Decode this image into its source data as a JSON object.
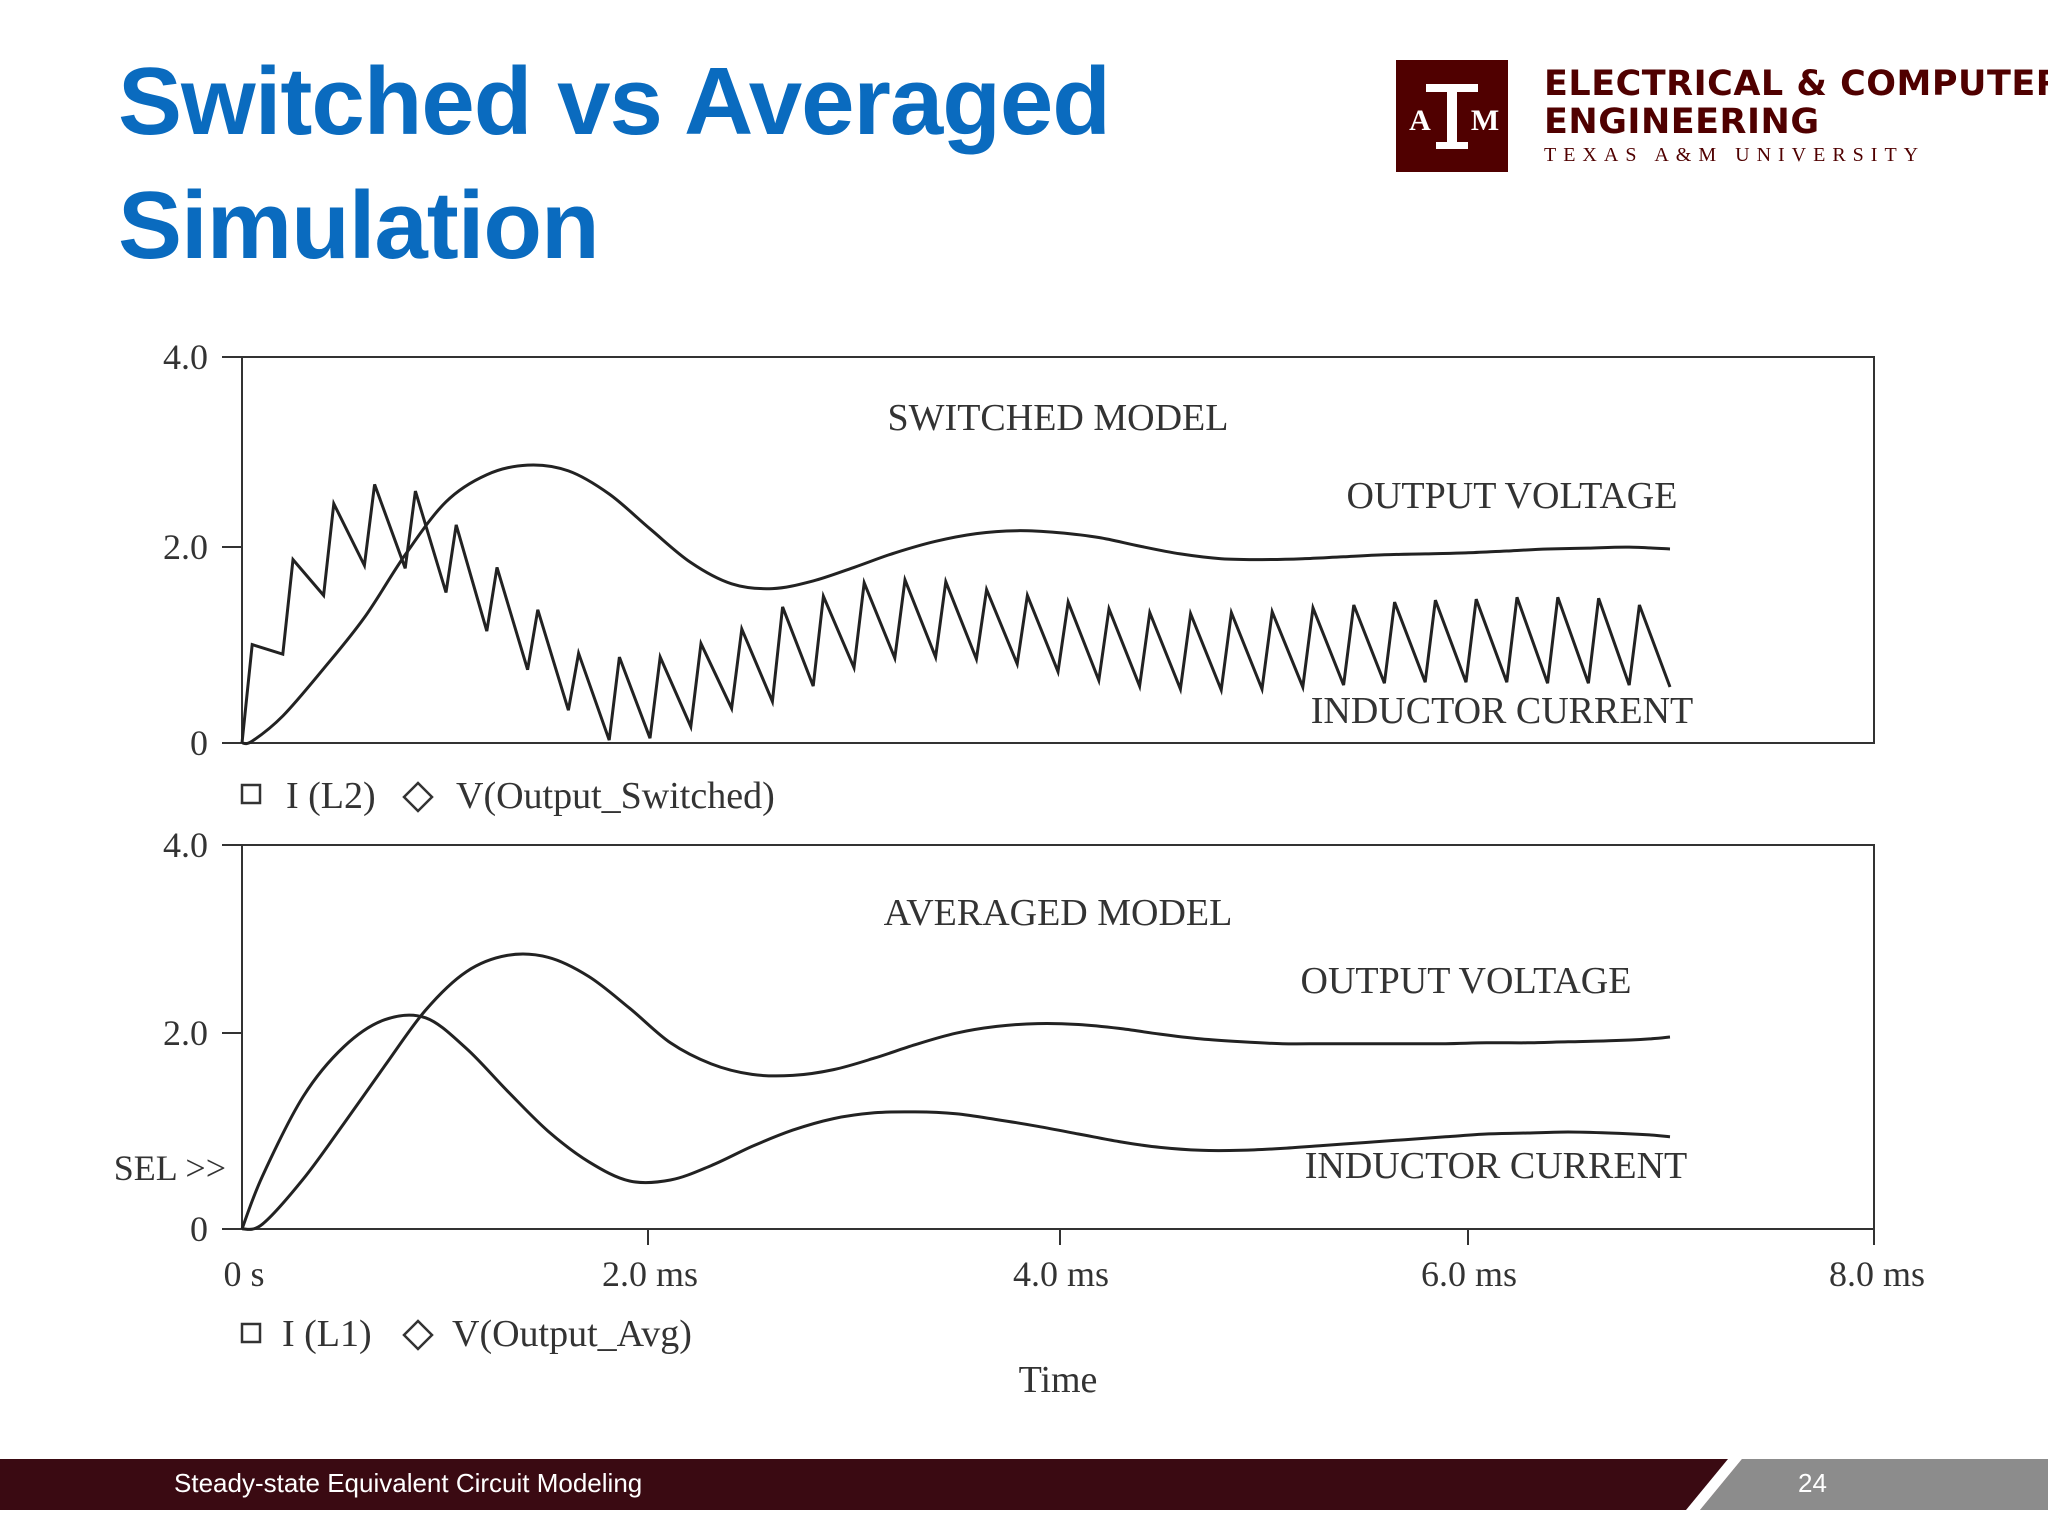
{
  "slide": {
    "title_line1": "Switched vs Averaged",
    "title_line2": "Simulation",
    "footer_text": "Steady-state Equivalent Circuit Modeling",
    "page_number": "24"
  },
  "logo": {
    "mark": "ATM",
    "line1": "ELECTRICAL & COMPUTER",
    "line2": "ENGINEERING",
    "line3": "TEXAS A&M UNIVERSITY",
    "color": "#500000"
  },
  "colors": {
    "title": "#0a6bbf",
    "footer_bg": "#3a0a12",
    "footer_accent": "#8c8c8c",
    "trace": "#222222"
  },
  "chart_data": [
    {
      "type": "line",
      "title": "SWITCHED MODEL",
      "xlabel": "",
      "ylabel": "",
      "xlim": [
        0,
        8
      ],
      "ylim": [
        0,
        4
      ],
      "y_ticks": [
        "0",
        "2.0",
        "4.0"
      ],
      "legend": [
        "I (L2)",
        "V(Output_Switched)"
      ],
      "annotations": [
        "OUTPUT VOLTAGE",
        "INDUCTOR CURRENT"
      ],
      "series": [
        {
          "name": "V(Output_Switched)",
          "label": "OUTPUT VOLTAGE",
          "x": [
            0,
            0.05,
            0.2,
            0.4,
            0.6,
            0.8,
            1.0,
            1.2,
            1.4,
            1.6,
            1.8,
            2.0,
            2.2,
            2.4,
            2.6,
            2.8,
            3.0,
            3.2,
            3.4,
            3.6,
            3.8,
            4.0,
            4.2,
            4.4,
            4.6,
            4.8,
            5.0,
            5.2,
            5.4,
            5.6,
            5.8,
            6.0,
            6.2,
            6.4,
            6.6,
            6.8,
            7.0
          ],
          "y": [
            0,
            0.02,
            0.28,
            0.77,
            1.3,
            1.95,
            2.5,
            2.78,
            2.88,
            2.82,
            2.58,
            2.22,
            1.87,
            1.65,
            1.6,
            1.68,
            1.82,
            1.97,
            2.09,
            2.17,
            2.2,
            2.18,
            2.13,
            2.04,
            1.96,
            1.91,
            1.9,
            1.91,
            1.93,
            1.95,
            1.96,
            1.97,
            1.99,
            2.01,
            2.02,
            2.03,
            2.01
          ]
        },
        {
          "name": "I (L2)",
          "label": "INDUCTOR CURRENT",
          "x": [
            0,
            0.05,
            0.2,
            0.25,
            0.4,
            0.45,
            0.6,
            0.65,
            0.8,
            0.85,
            1.0,
            1.05,
            1.2,
            1.25,
            1.4,
            1.45,
            1.6,
            1.65,
            1.8,
            1.85,
            2.0,
            2.05,
            2.2,
            2.25,
            2.4,
            2.45,
            2.6,
            2.65,
            2.8,
            2.85,
            3.0,
            3.05,
            3.2,
            3.25,
            3.4,
            3.45,
            3.6,
            3.65,
            3.8,
            3.85,
            4.0,
            4.05,
            4.2,
            4.25,
            4.4,
            4.45,
            4.6,
            4.65,
            4.8,
            4.85,
            5.0,
            5.05,
            5.2,
            5.25,
            5.4,
            5.45,
            5.6,
            5.65,
            5.8,
            5.85,
            6.0,
            6.05,
            6.2,
            6.25,
            6.4,
            6.45,
            6.6,
            6.65,
            6.8,
            6.85,
            7.0
          ],
          "y": [
            0,
            1.02,
            0.92,
            1.9,
            1.53,
            2.48,
            1.84,
            2.68,
            1.81,
            2.61,
            1.56,
            2.26,
            1.16,
            1.82,
            0.76,
            1.38,
            0.34,
            0.93,
            0.03,
            0.89,
            0.05,
            0.89,
            0.17,
            1.03,
            0.36,
            1.18,
            0.43,
            1.41,
            0.59,
            1.52,
            0.78,
            1.66,
            0.88,
            1.69,
            0.89,
            1.67,
            0.87,
            1.59,
            0.82,
            1.53,
            0.74,
            1.46,
            0.65,
            1.39,
            0.59,
            1.35,
            0.56,
            1.34,
            0.55,
            1.35,
            0.56,
            1.36,
            0.58,
            1.4,
            0.6,
            1.43,
            0.62,
            1.46,
            0.63,
            1.48,
            0.63,
            1.49,
            0.63,
            1.51,
            0.62,
            1.51,
            0.62,
            1.5,
            0.6,
            1.43,
            0.58
          ]
        }
      ]
    },
    {
      "type": "line",
      "title": "AVERAGED MODEL",
      "xlabel": "Time",
      "ylabel": "",
      "xlim": [
        0,
        8
      ],
      "ylim": [
        0,
        4
      ],
      "x_ticks": [
        "0 s",
        "2.0 ms",
        "4.0 ms",
        "6.0 ms",
        "8.0 ms"
      ],
      "y_ticks": [
        "0",
        "2.0",
        "4.0"
      ],
      "side_label": "SEL >>",
      "legend": [
        "I (L1)",
        "V(Output_Avg)"
      ],
      "annotations": [
        "OUTPUT VOLTAGE",
        "INDUCTOR CURRENT"
      ],
      "series": [
        {
          "name": "V(Output_Avg)",
          "label": "OUTPUT VOLTAGE",
          "x": [
            0,
            0.1,
            0.3,
            0.5,
            0.7,
            0.9,
            1.1,
            1.3,
            1.5,
            1.7,
            1.9,
            2.1,
            2.3,
            2.5,
            2.7,
            2.9,
            3.1,
            3.3,
            3.5,
            3.7,
            3.9,
            4.1,
            4.3,
            4.5,
            4.7,
            4.9,
            5.1,
            5.3,
            5.5,
            5.7,
            5.9,
            6.1,
            6.3,
            6.5,
            6.7,
            6.9,
            7.0
          ],
          "y": [
            0,
            0.05,
            0.52,
            1.1,
            1.7,
            2.28,
            2.68,
            2.85,
            2.83,
            2.63,
            2.3,
            1.94,
            1.72,
            1.61,
            1.6,
            1.66,
            1.78,
            1.92,
            2.04,
            2.11,
            2.14,
            2.13,
            2.09,
            2.03,
            1.98,
            1.95,
            1.93,
            1.93,
            1.93,
            1.93,
            1.93,
            1.94,
            1.94,
            1.95,
            1.96,
            1.98,
            2.0
          ]
        },
        {
          "name": "I (L1)",
          "label": "INDUCTOR CURRENT",
          "x": [
            0,
            0.1,
            0.3,
            0.5,
            0.7,
            0.9,
            1.1,
            1.3,
            1.5,
            1.7,
            1.9,
            2.1,
            2.3,
            2.5,
            2.7,
            2.9,
            3.1,
            3.3,
            3.5,
            3.7,
            3.9,
            4.1,
            4.3,
            4.5,
            4.7,
            4.9,
            5.1,
            5.3,
            5.5,
            5.7,
            5.9,
            6.1,
            6.3,
            6.5,
            6.7,
            6.9,
            7.0
          ],
          "y": [
            0,
            0.55,
            1.38,
            1.9,
            2.18,
            2.2,
            1.88,
            1.44,
            1.02,
            0.7,
            0.5,
            0.51,
            0.66,
            0.86,
            1.03,
            1.15,
            1.21,
            1.22,
            1.2,
            1.14,
            1.07,
            0.99,
            0.91,
            0.85,
            0.82,
            0.82,
            0.84,
            0.87,
            0.9,
            0.93,
            0.96,
            0.99,
            1.0,
            1.01,
            1.0,
            0.98,
            0.96
          ]
        }
      ]
    }
  ]
}
